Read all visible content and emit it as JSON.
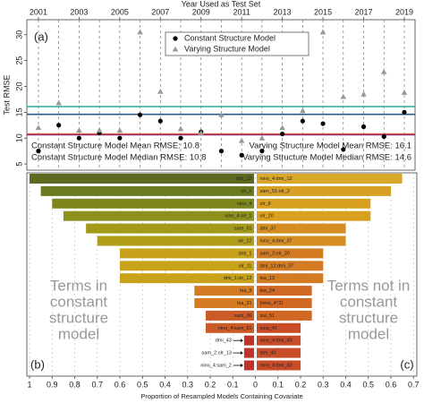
{
  "chart_data": [
    {
      "type": "scatter",
      "xlabel": "Year Used as Test Set",
      "ylabel": "Test RMSE",
      "panel_label": "(a)",
      "x": [
        2001,
        2002,
        2003,
        2004,
        2005,
        2006,
        2007,
        2008,
        2009,
        2010,
        2011,
        2012,
        2013,
        2014,
        2015,
        2016,
        2017,
        2018,
        2019
      ],
      "series": [
        {
          "name": "Constant Structure Model",
          "color": "#000000",
          "marker": "circle",
          "values": [
            7.5,
            12.5,
            10,
            11,
            10,
            14.5,
            13.3,
            10,
            11.2,
            7.5,
            6.7,
            7.5,
            10.8,
            13.3,
            12.8,
            7.8,
            12.2,
            10.3,
            15
          ]
        },
        {
          "name": "Varying Structure Model",
          "color": "#999999",
          "marker": "triangle",
          "values": [
            12,
            16.8,
            11.5,
            11.5,
            11.5,
            30.5,
            19,
            11.8,
            11,
            14.5,
            9.5,
            10,
            12,
            15.3,
            30.5,
            18,
            18.5,
            22.8,
            18.8
          ]
        }
      ],
      "reference_lines": [
        {
          "label": "Constant Structure Model Mean RMSE: 10.8",
          "value": 10.8,
          "color": "#e8793a"
        },
        {
          "label": "Constant Structure Model Median RMSE: 10.8",
          "value": 10.8,
          "color": "#9b2a6a"
        },
        {
          "label": "Varying Structure Model Mean RMSE: 16.1",
          "value": 16.1,
          "color": "#35a99a"
        },
        {
          "label": "Varying Structure Model Median RMSE: 14.6",
          "value": 14.6,
          "color": "#2b5b86"
        }
      ],
      "xlim": [
        2000.43,
        2019.53
      ],
      "xticks": [
        2001,
        2003,
        2005,
        2007,
        2009,
        2011,
        2013,
        2015,
        2017,
        2019
      ],
      "ylim": [
        3.8,
        32.9
      ],
      "yticks": [
        5,
        10,
        15,
        20,
        25,
        30
      ]
    },
    {
      "type": "diverging_bar",
      "xlabel": "Proportion of Resampled Models Containing Covariate",
      "left": {
        "panel_label": "(b)",
        "annotation": [
          "Terms in",
          "constant",
          "structure",
          "model"
        ],
        "categories": [
          "dmi_12",
          "olr_1",
          "nino_4",
          "nino_4:olr_1",
          "sam_51",
          "olr_12",
          "dmi_1",
          "olr_11",
          "dmi_1:olr_12",
          "tsa_3",
          "tsa_31",
          "sam_36",
          "nino_4:sam_51",
          "dmi_43",
          "sam_2:olr_13",
          "nino_4:sam_2"
        ],
        "values": [
          1.0,
          0.95,
          0.9,
          0.85,
          0.75,
          0.7,
          0.6,
          0.6,
          0.6,
          0.27,
          0.27,
          0.22,
          0.22,
          0.05,
          0.05,
          0.05
        ],
        "colors": [
          "#5b6a1e",
          "#6c7a1f",
          "#7d871d",
          "#8d901c",
          "#a3991a",
          "#b29d19",
          "#c8a21b",
          "#c8a21b",
          "#c8a21b",
          "#d57b22",
          "#d57b22",
          "#cb5a29",
          "#cb5a29",
          "#c0322a",
          "#c0322a",
          "#c0322a"
        ],
        "xlim": [
          1.012,
          0
        ],
        "xticks": [
          1,
          0.9,
          0.8,
          0.7,
          0.6,
          0.5,
          0.4,
          0.3,
          0.2,
          0.1,
          0
        ]
      },
      "right": {
        "panel_label": "(c)",
        "annotation": [
          "Terms not in",
          "constant",
          "structure",
          "model"
        ],
        "categories": [
          "nino_4:dmi_12",
          "sam_51:olr_2",
          "olr_8",
          "olr_20",
          "dmi_37",
          "nino_4:dmi_37",
          "sam_2:olr_20",
          "dmi_12:dmi_37",
          "tsa_13",
          "tsa_24",
          "(nino_4^2)",
          "tsa_51",
          "nino_47",
          "nino_4:dmi_40",
          "dmi_40",
          "nino_4:dmi_40"
        ],
        "values": [
          0.65,
          0.6,
          0.51,
          0.51,
          0.4,
          0.4,
          0.3,
          0.3,
          0.3,
          0.25,
          0.25,
          0.25,
          0.2,
          0.2,
          0.2,
          0.2
        ],
        "colors": [
          "#d9a828",
          "#d7a025",
          "#d9a020",
          "#d9a020",
          "#d48e22",
          "#d48e22",
          "#d27b22",
          "#d27b22",
          "#d27b22",
          "#d06824",
          "#d06824",
          "#d06824",
          "#c94c28",
          "#c94c28",
          "#c94c28",
          "#c94c28"
        ],
        "xlim": [
          0,
          0.72
        ],
        "xticks": [
          0.1,
          0.2,
          0.3,
          0.4,
          0.5,
          0.6,
          0.7
        ]
      }
    }
  ]
}
